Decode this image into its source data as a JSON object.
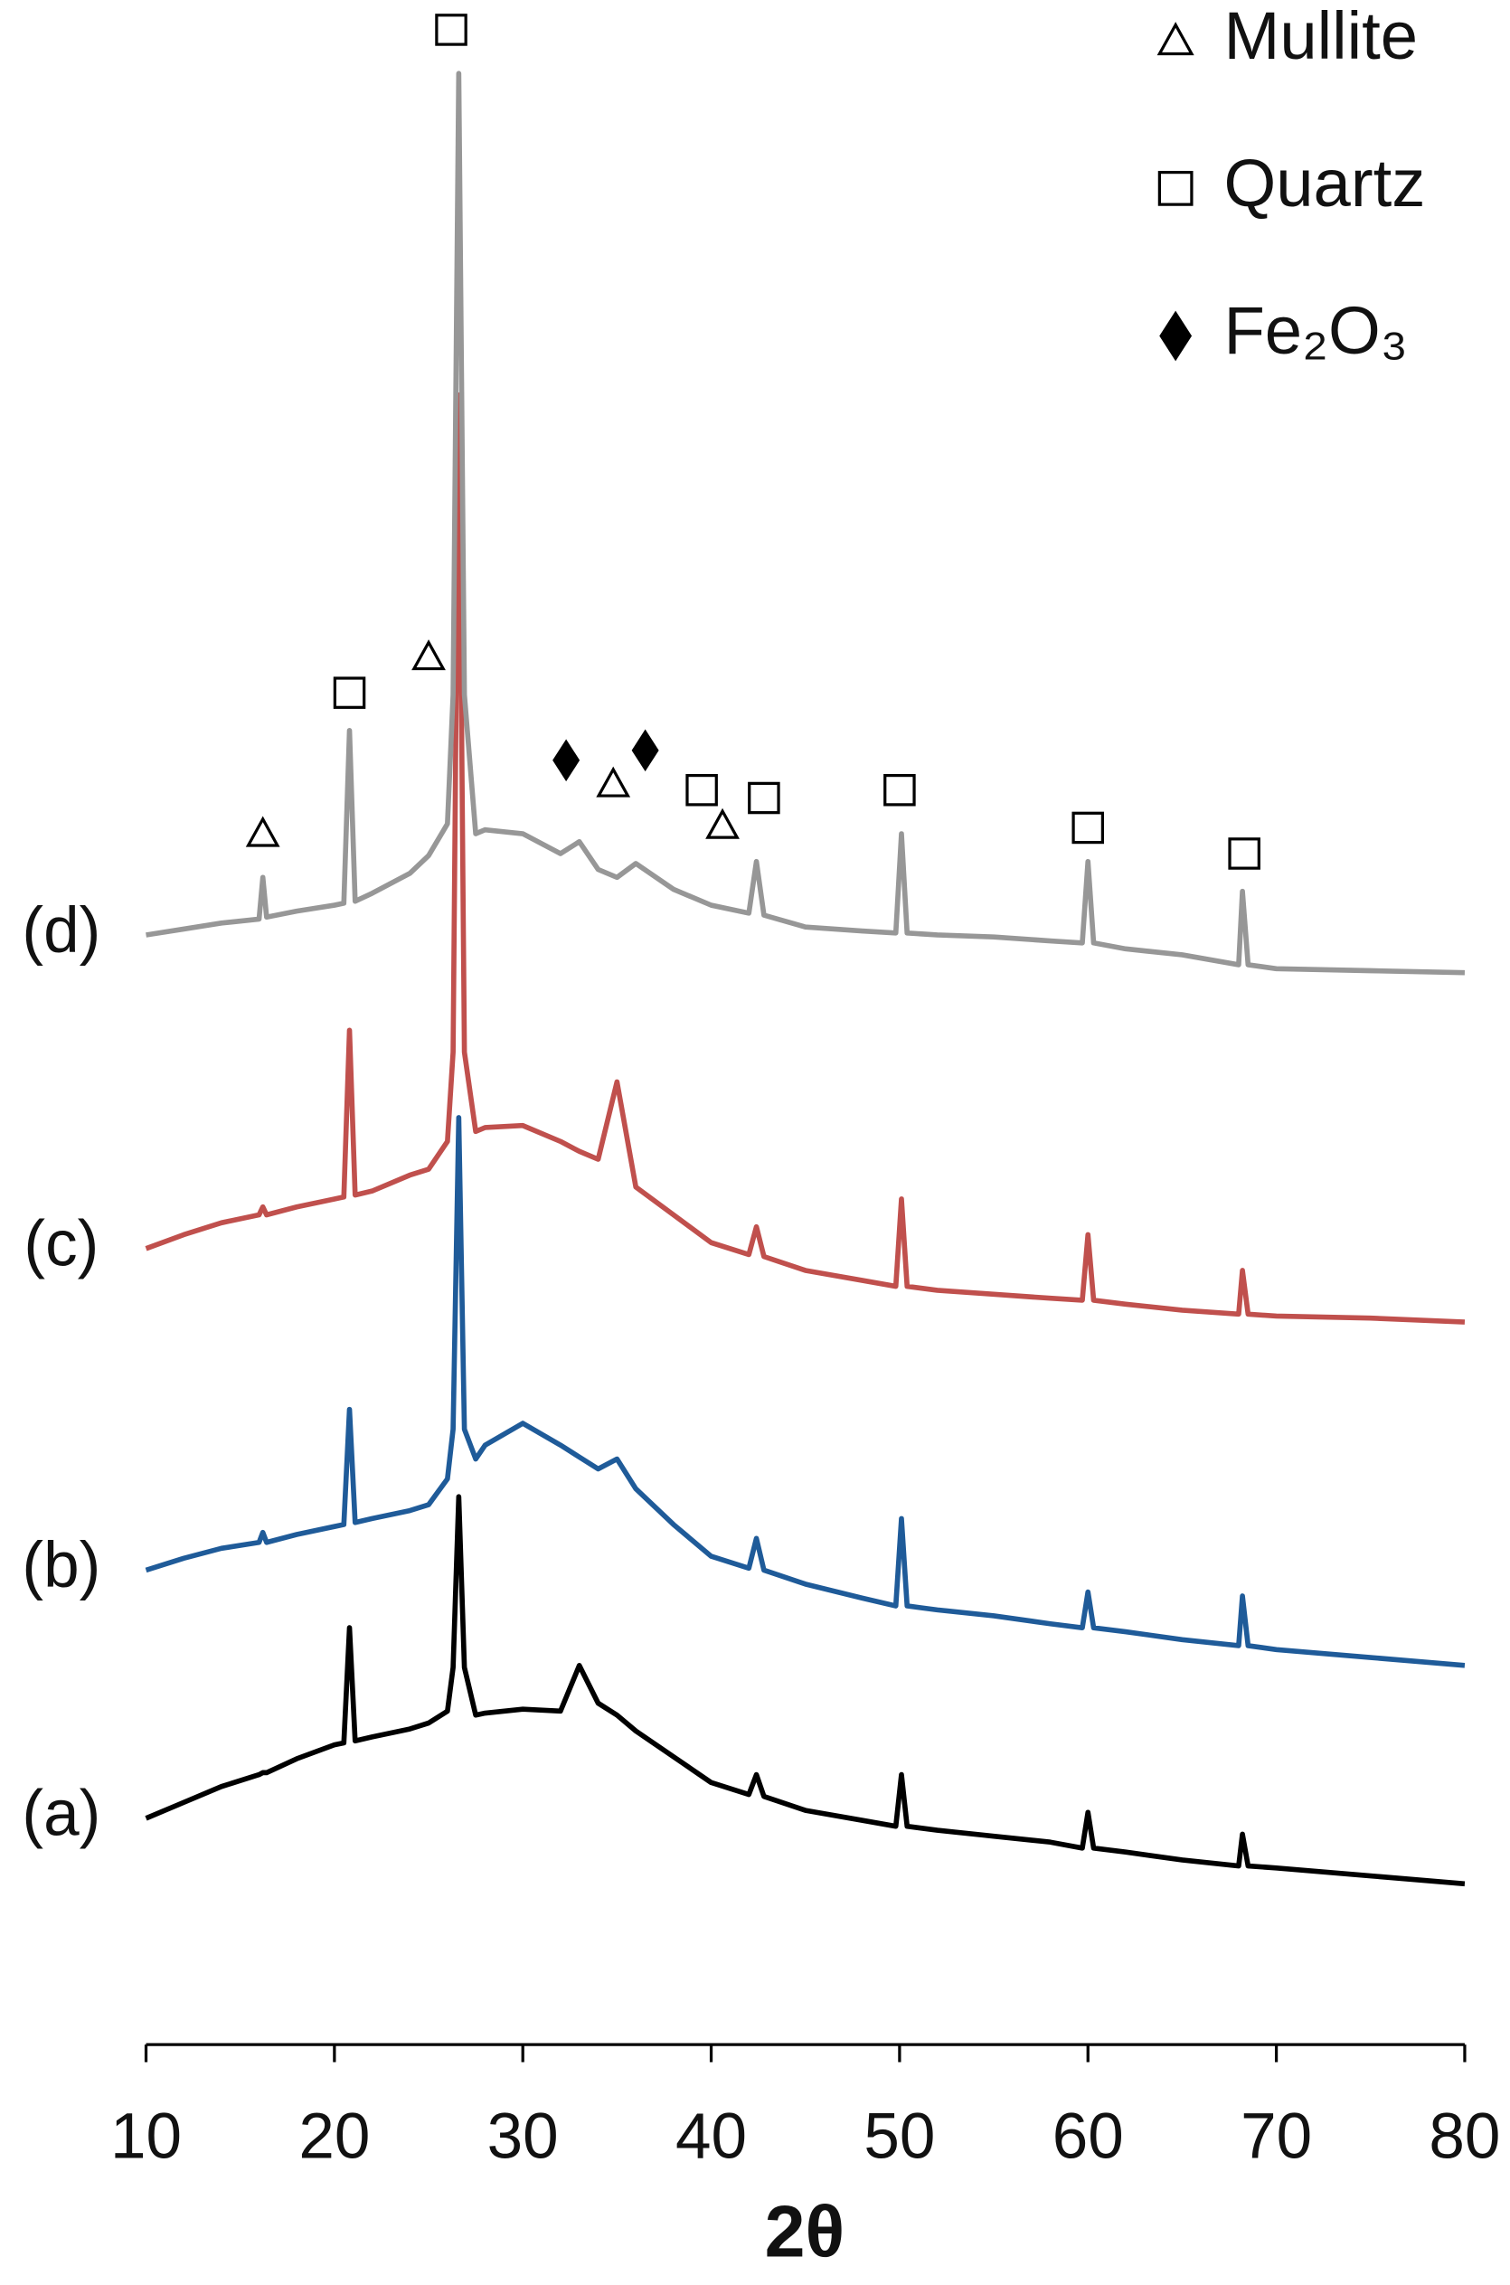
{
  "chart_data": {
    "type": "line",
    "xlabel": "2θ",
    "x": [
      10,
      12,
      14,
      16,
      16.2,
      16.4,
      18,
      20,
      20.5,
      20.8,
      21.1,
      22,
      24,
      25,
      26,
      26.3,
      26.6,
      26.9,
      27.5,
      28,
      30,
      32,
      33,
      34,
      35,
      36,
      38,
      40,
      42,
      42.4,
      42.8,
      45,
      48,
      49.8,
      50.1,
      50.4,
      52,
      55,
      58,
      59.7,
      60,
      60.3,
      62,
      65,
      68,
      68.2,
      68.5,
      70,
      75,
      80
    ],
    "series": [
      {
        "name": "(a)",
        "color": "#000000",
        "values": [
          11.4,
          12.2,
          13.0,
          13.6,
          13.7,
          13.7,
          14.4,
          15.1,
          15.2,
          21.0,
          15.3,
          15.5,
          15.9,
          16.2,
          16.8,
          19,
          27.6,
          19,
          16.6,
          16.7,
          16.9,
          16.8,
          19.1,
          17.2,
          16.6,
          15.8,
          14.5,
          13.2,
          12.6,
          13.6,
          12.5,
          11.8,
          11.3,
          11.0,
          13.6,
          11.0,
          10.8,
          10.5,
          10.2,
          9.9,
          11.7,
          9.9,
          9.7,
          9.3,
          9.0,
          10.6,
          9.0,
          8.9,
          8.5,
          8.1
        ]
      },
      {
        "name": "(b)",
        "color": "#1f5b99",
        "values": [
          23.9,
          24.5,
          25.0,
          25.3,
          25.8,
          25.3,
          25.7,
          26.1,
          26.2,
          32.0,
          26.3,
          26.5,
          26.9,
          27.2,
          28.5,
          31,
          46.7,
          31,
          29.5,
          30.2,
          31.3,
          30.2,
          29.6,
          29.0,
          29.5,
          28.0,
          26.2,
          24.6,
          24.0,
          25.5,
          23.9,
          23.2,
          22.5,
          22.1,
          26.5,
          22.1,
          21.9,
          21.6,
          21.2,
          21.0,
          22.8,
          21.0,
          20.8,
          20.4,
          20.1,
          22.6,
          20.1,
          19.9,
          19.5,
          19.1
        ]
      },
      {
        "name": "(c)",
        "color": "#c0504d",
        "values": [
          40.1,
          40.8,
          41.4,
          41.8,
          42.2,
          41.8,
          42.2,
          42.6,
          42.7,
          51.1,
          42.8,
          43.0,
          43.8,
          44.1,
          45.5,
          50,
          83.1,
          50,
          46,
          46.2,
          46.3,
          45.5,
          45.0,
          44.6,
          48.5,
          43.2,
          41.8,
          40.4,
          39.8,
          41.2,
          39.7,
          39.0,
          38.5,
          38.2,
          42.6,
          38.2,
          38.0,
          37.8,
          37.6,
          37.5,
          40.8,
          37.5,
          37.3,
          37.0,
          36.8,
          39.0,
          36.8,
          36.7,
          36.6,
          36.4
        ]
      },
      {
        "name": "(d)",
        "color": "#979797",
        "values": [
          55.9,
          56.2,
          56.5,
          56.7,
          58.8,
          56.8,
          57.1,
          57.4,
          57.5,
          66.2,
          57.6,
          58.0,
          59.0,
          59.9,
          61.5,
          68,
          99.3,
          68,
          61.0,
          61.2,
          61.0,
          60.0,
          60.6,
          59.2,
          58.8,
          59.5,
          58.2,
          57.4,
          57.0,
          59.6,
          56.9,
          56.3,
          56.1,
          56.0,
          61.0,
          56.0,
          55.9,
          55.8,
          55.6,
          55.5,
          59.6,
          55.5,
          55.2,
          54.9,
          54.4,
          58.1,
          54.4,
          54.2,
          54.1,
          54.0
        ]
      }
    ],
    "phases": [
      {
        "name": "Mullite",
        "symbol": "triangle"
      },
      {
        "name": "Quartz",
        "symbol": "square"
      },
      {
        "name": "Fe₂O₃",
        "symbol": "diamond"
      }
    ],
    "peak_markers": [
      {
        "symbol": "square",
        "x": 26.2,
        "y": 101.5
      },
      {
        "symbol": "triangle",
        "x": 16.2,
        "y": 61.0
      },
      {
        "symbol": "square",
        "x": 20.8,
        "y": 68.1
      },
      {
        "symbol": "triangle",
        "x": 25.0,
        "y": 69.9
      },
      {
        "symbol": "diamond",
        "x": 32.3,
        "y": 64.7
      },
      {
        "symbol": "diamond",
        "x": 36.5,
        "y": 65.2
      },
      {
        "symbol": "triangle",
        "x": 34.8,
        "y": 63.5
      },
      {
        "symbol": "square",
        "x": 39.5,
        "y": 63.2
      },
      {
        "symbol": "triangle",
        "x": 40.6,
        "y": 61.4
      },
      {
        "symbol": "square",
        "x": 42.8,
        "y": 62.8
      },
      {
        "symbol": "square",
        "x": 50,
        "y": 63.2
      },
      {
        "symbol": "square",
        "x": 60,
        "y": 61.3
      },
      {
        "symbol": "square",
        "x": 68.3,
        "y": 60.0
      }
    ],
    "xlim": [
      10,
      80
    ],
    "xticks": [
      10,
      20,
      30,
      40,
      50,
      60,
      70,
      80
    ],
    "ylim": [
      0,
      103
    ]
  }
}
